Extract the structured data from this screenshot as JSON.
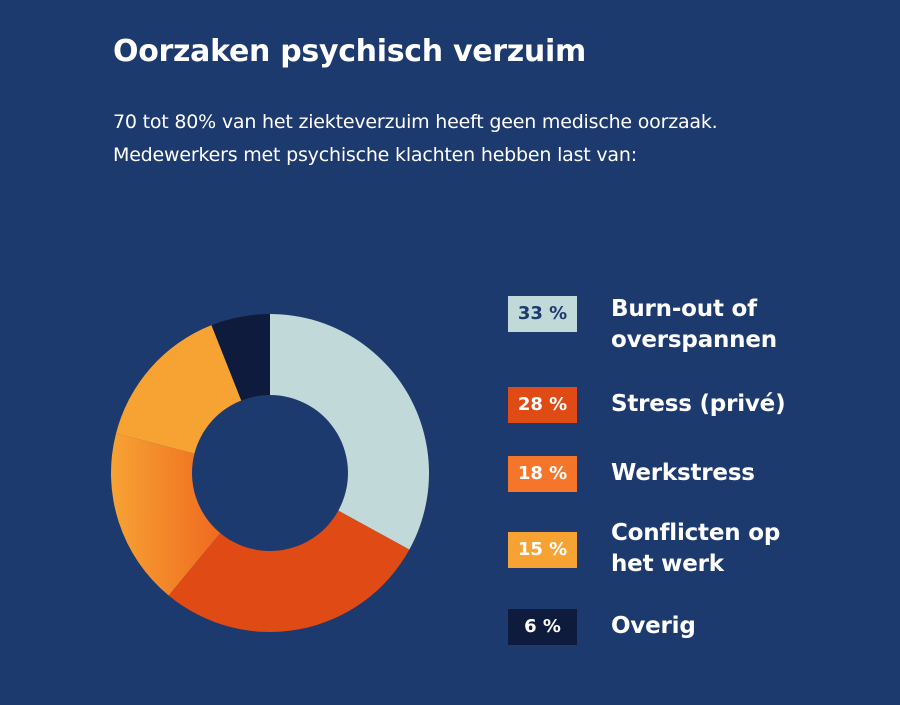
{
  "title": "Oorzaken psychisch verzuim",
  "subtitle_line1": "70 tot 80% van het ziekteverzuim heeft geen medische oorzaak.",
  "subtitle_line2": "Medewerkers met psychische klachten hebben last van:",
  "chart_data": {
    "type": "pie",
    "variant": "donut",
    "title": "Oorzaken psychisch verzuim",
    "unit": "%",
    "legend_position": "right",
    "series": [
      {
        "categories": [
          "Burn-out of overspannen",
          "Stress (privé)",
          "Werkstress",
          "Conflicten op het werk",
          "Overig"
        ],
        "values": [
          33,
          28,
          18,
          15,
          6
        ],
        "colors": [
          "#c1d9d8",
          "#e04a14",
          "#f5762a",
          "#f7a334",
          "#0e1b3d"
        ]
      }
    ]
  },
  "legend": [
    {
      "badge": "33 %",
      "label_lines": [
        "Burn-out of",
        "overspannen"
      ],
      "color": "#c1d9d8",
      "text_color": "#1d3a6e"
    },
    {
      "badge": "28 %",
      "label_lines": [
        "Stress (privé)"
      ],
      "color": "#e04a14",
      "text_color": "#ffffff"
    },
    {
      "badge": "18 %",
      "label_lines": [
        "Werkstress"
      ],
      "color": "#f5762a",
      "text_color": "#ffffff"
    },
    {
      "badge": "15 %",
      "label_lines": [
        "Conflicten op",
        "het werk"
      ],
      "color": "#f7a334",
      "text_color": "#ffffff"
    },
    {
      "badge": "6 %",
      "label_lines": [
        "Overig"
      ],
      "color": "#0e1b3d",
      "text_color": "#ffffff"
    }
  ]
}
